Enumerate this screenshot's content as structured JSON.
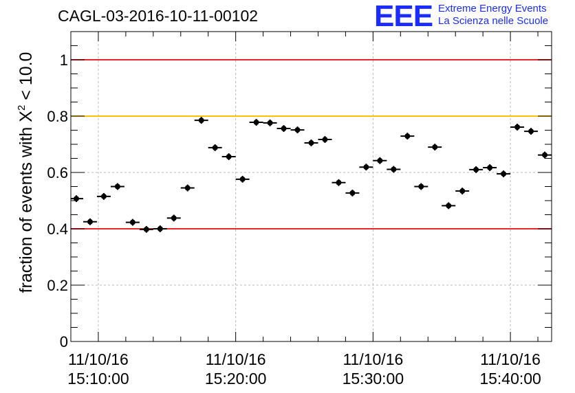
{
  "title": "CAGL-03-2016-10-11-00102",
  "logo": {
    "mark": "EEE",
    "line1": "Extreme Energy Events",
    "line2": "La Scienza nelle Scuole"
  },
  "chart_data": {
    "type": "scatter",
    "title": "CAGL-03-2016-10-11-00102",
    "xlabel": "",
    "ylabel_prefix": "fraction of events with X",
    "ylabel_sup": "2",
    "ylabel_suffix": " < 10.0",
    "x_unit": "minutes after 15:06:00",
    "xlim": [
      0,
      35
    ],
    "ylim": [
      0,
      1.1
    ],
    "grid": true,
    "y_ticks": [
      0,
      0.2,
      0.4,
      0.6,
      0.8,
      1
    ],
    "y_tick_labels": [
      "0",
      "0.2",
      "0.4",
      "0.6",
      "0.8",
      "1"
    ],
    "x_ticks": [
      {
        "x": 2,
        "line1": "11/10/16",
        "line2": "15:10:00"
      },
      {
        "x": 12,
        "line1": "11/10/16",
        "line2": "15:20:00"
      },
      {
        "x": 22,
        "line1": "11/10/16",
        "line2": "15:30:00"
      },
      {
        "x": 32,
        "line1": "11/10/16",
        "line2": "15:40:00"
      }
    ],
    "reference_lines": [
      {
        "y": 1.0,
        "color": "#e8252b",
        "name": "upper-limit"
      },
      {
        "y": 0.8,
        "color": "#ffc200",
        "name": "warning-limit"
      },
      {
        "y": 0.4,
        "color": "#e8252b",
        "name": "lower-limit"
      }
    ],
    "point_half_width": 0.5,
    "series": [
      {
        "name": "fraction",
        "x": [
          0.4,
          1.4,
          2.4,
          3.4,
          4.5,
          5.5,
          6.5,
          7.5,
          8.5,
          9.5,
          10.5,
          11.5,
          12.5,
          13.5,
          14.5,
          15.5,
          16.5,
          17.5,
          18.5,
          19.5,
          20.5,
          21.5,
          22.5,
          23.5,
          24.5,
          25.5,
          26.5,
          27.5,
          28.5,
          29.5,
          30.5,
          31.5,
          32.5,
          33.5,
          34.5
        ],
        "values": [
          0.507,
          0.425,
          0.515,
          0.55,
          0.423,
          0.398,
          0.4,
          0.438,
          0.545,
          0.785,
          0.688,
          0.656,
          0.576,
          0.778,
          0.776,
          0.756,
          0.751,
          0.705,
          0.717,
          0.564,
          0.527,
          0.619,
          0.642,
          0.611,
          0.729,
          0.55,
          0.69,
          0.482,
          0.534,
          0.61,
          0.617,
          0.595,
          0.761,
          0.746,
          0.662
        ],
        "y_error": 0.012
      }
    ]
  }
}
